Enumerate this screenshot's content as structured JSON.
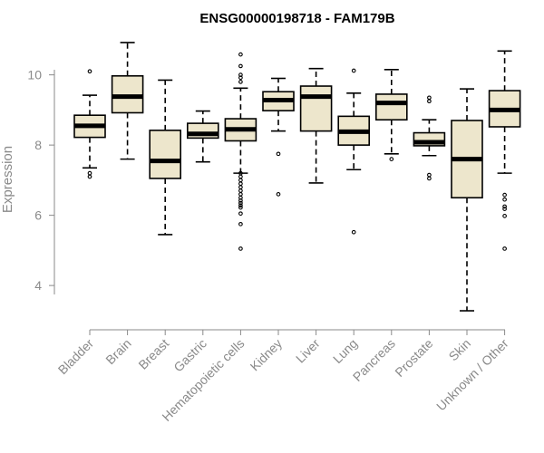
{
  "chart_data": {
    "type": "box",
    "title": "ENSG00000198718 - FAM179B",
    "xlabel": "",
    "ylabel": "Expression",
    "ylim": [
      3.1,
      11.1
    ],
    "yticks": [
      4,
      6,
      8,
      10
    ],
    "grid": false,
    "colors": {
      "box_fill": "#ede6cc",
      "stroke": "#000000",
      "axis": "#8a8a8a"
    },
    "categories": [
      "Bladder",
      "Brain",
      "Breast",
      "Gastric",
      "Hematopoietic cells",
      "Kidney",
      "Liver",
      "Lung",
      "Pancreas",
      "Prostate",
      "Skin",
      "Unknown / Other"
    ],
    "series": [
      {
        "category": "Bladder",
        "whisker_low": 7.35,
        "q1": 8.22,
        "median": 8.55,
        "q3": 8.85,
        "whisker_high": 9.42,
        "outliers": [
          10.1,
          7.2,
          7.1
        ]
      },
      {
        "category": "Brain",
        "whisker_low": 7.6,
        "q1": 8.92,
        "median": 9.38,
        "q3": 9.97,
        "whisker_high": 10.92,
        "outliers": []
      },
      {
        "category": "Breast",
        "whisker_low": 5.45,
        "q1": 7.05,
        "median": 7.55,
        "q3": 8.42,
        "whisker_high": 9.85,
        "outliers": []
      },
      {
        "category": "Gastric",
        "whisker_low": 7.52,
        "q1": 8.2,
        "median": 8.32,
        "q3": 8.62,
        "whisker_high": 8.97,
        "outliers": []
      },
      {
        "category": "Hematopoietic cells",
        "whisker_low": 7.2,
        "q1": 8.12,
        "median": 8.45,
        "q3": 8.75,
        "whisker_high": 9.62,
        "outliers": [
          10.58,
          10.25,
          10.0,
          9.92,
          9.8,
          7.2,
          7.1,
          7.0,
          6.9,
          6.8,
          6.7,
          6.6,
          6.5,
          6.42,
          6.35,
          6.28,
          6.22,
          6.05,
          5.75,
          5.05
        ]
      },
      {
        "category": "Kidney",
        "whisker_low": 8.4,
        "q1": 8.98,
        "median": 9.28,
        "q3": 9.52,
        "whisker_high": 9.9,
        "outliers": [
          7.75,
          6.6
        ]
      },
      {
        "category": "Liver",
        "whisker_low": 6.92,
        "q1": 8.4,
        "median": 9.38,
        "q3": 9.68,
        "whisker_high": 10.18,
        "outliers": []
      },
      {
        "category": "Lung",
        "whisker_low": 7.3,
        "q1": 8.0,
        "median": 8.38,
        "q3": 8.82,
        "whisker_high": 9.48,
        "outliers": [
          10.12,
          5.52
        ]
      },
      {
        "category": "Pancreas",
        "whisker_low": 7.75,
        "q1": 8.72,
        "median": 9.2,
        "q3": 9.45,
        "whisker_high": 10.15,
        "outliers": [
          7.6
        ]
      },
      {
        "category": "Prostate",
        "whisker_low": 7.7,
        "q1": 7.98,
        "median": 8.08,
        "q3": 8.35,
        "whisker_high": 8.72,
        "outliers": [
          9.35,
          9.25,
          7.15,
          7.05
        ]
      },
      {
        "category": "Skin",
        "whisker_low": 3.28,
        "q1": 6.5,
        "median": 7.6,
        "q3": 8.7,
        "whisker_high": 9.6,
        "outliers": []
      },
      {
        "category": "Unknown / Other",
        "whisker_low": 7.2,
        "q1": 8.52,
        "median": 9.0,
        "q3": 9.55,
        "whisker_high": 10.68,
        "outliers": [
          6.58,
          6.45,
          6.25,
          6.18,
          5.98,
          5.05
        ]
      }
    ]
  }
}
